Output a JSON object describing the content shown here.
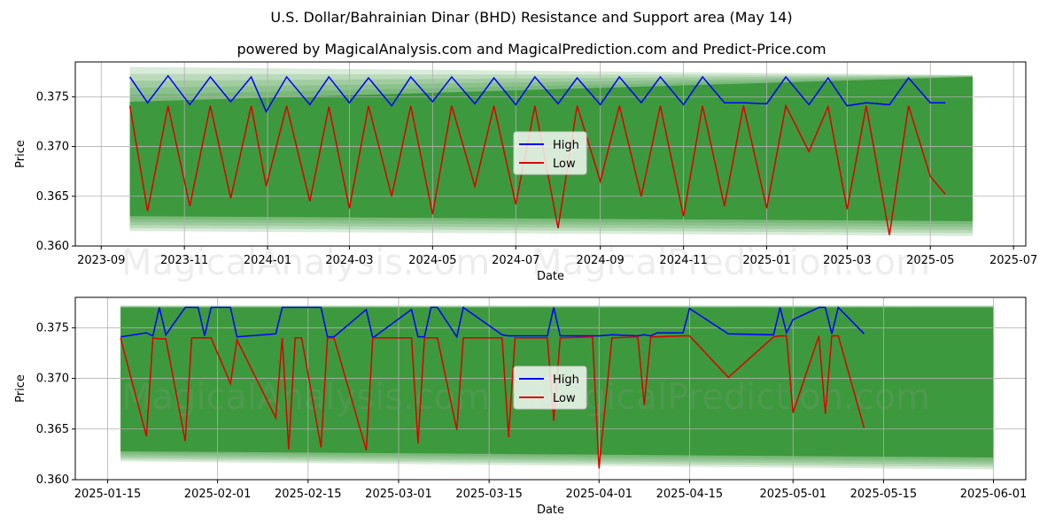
{
  "title": "U.S. Dollar/Bahrainian Dinar (BHD) Resistance and Support area (May 14)",
  "subtitle": "powered by MagicalAnalysis.com and MagicalPrediction.com and Predict-Price.com",
  "watermarks": [
    "MagicalAnalysis.com",
    "MagicalPrediction.com"
  ],
  "colors": {
    "high": "#0000ff",
    "low": "#e00000",
    "band": "#2a8f2a",
    "grid": "#b0b0b0"
  },
  "chart_data": [
    {
      "type": "line",
      "xlabel": "Date",
      "ylabel": "Price",
      "grid": true,
      "legend_position": "center",
      "xlim": [
        "2023-08-13",
        "2025-07-10"
      ],
      "ylim": [
        0.36,
        0.3785
      ],
      "x_ticks": [
        "2023-09",
        "2023-11",
        "2024-01",
        "2024-03",
        "2024-05",
        "2024-07",
        "2024-09",
        "2024-11",
        "2025-01",
        "2025-03",
        "2025-05",
        "2025-07"
      ],
      "y_ticks": [
        "0.360",
        "0.365",
        "0.370",
        "0.375"
      ],
      "band": {
        "x": [
          "2023-09-22",
          "2025-06-01"
        ],
        "upper": [
          0.378,
          0.3772
        ],
        "lower": [
          0.3615,
          0.361
        ],
        "core_upper": [
          0.3745,
          0.377
        ],
        "core_lower": [
          0.363,
          0.3625
        ]
      },
      "series": [
        {
          "name": "High",
          "x": [
            "2023-09-22",
            "2023-10-05",
            "2023-10-20",
            "2023-11-05",
            "2023-11-20",
            "2023-12-05",
            "2023-12-20",
            "2023-12-31",
            "2024-01-15",
            "2024-02-01",
            "2024-02-15",
            "2024-03-01",
            "2024-03-15",
            "2024-04-01",
            "2024-04-15",
            "2024-05-01",
            "2024-05-15",
            "2024-06-01",
            "2024-06-15",
            "2024-07-01",
            "2024-07-15",
            "2024-08-01",
            "2024-08-15",
            "2024-09-01",
            "2024-09-15",
            "2024-10-01",
            "2024-10-15",
            "2024-11-01",
            "2024-11-15",
            "2024-12-01",
            "2024-12-15",
            "2025-01-01",
            "2025-01-15",
            "2025-02-01",
            "2025-02-15",
            "2025-03-01",
            "2025-03-15",
            "2025-04-01",
            "2025-04-15",
            "2025-05-01",
            "2025-05-12"
          ],
          "values": [
            0.377,
            0.3744,
            0.3771,
            0.3742,
            0.377,
            0.3745,
            0.377,
            0.3735,
            0.377,
            0.3742,
            0.377,
            0.3744,
            0.3769,
            0.3741,
            0.377,
            0.3745,
            0.377,
            0.3743,
            0.3769,
            0.3742,
            0.377,
            0.3743,
            0.3769,
            0.3742,
            0.377,
            0.3744,
            0.377,
            0.3742,
            0.377,
            0.3744,
            0.3744,
            0.3743,
            0.377,
            0.3742,
            0.3769,
            0.3741,
            0.3744,
            0.3742,
            0.3769,
            0.3744,
            0.3744
          ]
        },
        {
          "name": "Low",
          "x": [
            "2023-09-22",
            "2023-10-05",
            "2023-10-20",
            "2023-11-05",
            "2023-11-20",
            "2023-12-05",
            "2023-12-20",
            "2023-12-31",
            "2024-01-15",
            "2024-02-01",
            "2024-02-15",
            "2024-03-01",
            "2024-03-15",
            "2024-04-01",
            "2024-04-15",
            "2024-05-01",
            "2024-05-15",
            "2024-06-01",
            "2024-06-15",
            "2024-07-01",
            "2024-07-15",
            "2024-08-01",
            "2024-08-15",
            "2024-09-01",
            "2024-09-15",
            "2024-10-01",
            "2024-10-15",
            "2024-11-01",
            "2024-11-15",
            "2024-12-01",
            "2024-12-15",
            "2025-01-01",
            "2025-01-15",
            "2025-02-01",
            "2025-02-15",
            "2025-03-01",
            "2025-03-15",
            "2025-04-01",
            "2025-04-15",
            "2025-05-01",
            "2025-05-12"
          ],
          "values": [
            0.3741,
            0.3635,
            0.3741,
            0.364,
            0.3741,
            0.3648,
            0.3741,
            0.366,
            0.3741,
            0.3645,
            0.374,
            0.3638,
            0.3741,
            0.365,
            0.3741,
            0.3632,
            0.3741,
            0.366,
            0.3741,
            0.3642,
            0.3741,
            0.3618,
            0.3741,
            0.3665,
            0.3741,
            0.365,
            0.3741,
            0.363,
            0.3741,
            0.364,
            0.3741,
            0.3638,
            0.3741,
            0.3695,
            0.374,
            0.3637,
            0.3741,
            0.3611,
            0.3741,
            0.367,
            0.3652
          ]
        }
      ]
    },
    {
      "type": "line",
      "xlabel": "Date",
      "ylabel": "Price",
      "grid": true,
      "legend_position": "center",
      "xlim": [
        "2025-01-10",
        "2025-06-06"
      ],
      "ylim": [
        0.36,
        0.378
      ],
      "x_ticks": [
        "2025-01-15",
        "2025-02-01",
        "2025-02-15",
        "2025-03-01",
        "2025-03-15",
        "2025-04-01",
        "2025-04-15",
        "2025-05-01",
        "2025-05-15",
        "2025-06-01"
      ],
      "y_ticks": [
        "0.360",
        "0.365",
        "0.370",
        "0.375"
      ],
      "band": {
        "x": [
          "2025-01-17",
          "2025-06-01"
        ],
        "upper": [
          0.3772,
          0.3772
        ],
        "lower": [
          0.3618,
          0.361
        ],
        "core_upper": [
          0.377,
          0.377
        ],
        "core_lower": [
          0.3628,
          0.3622
        ]
      },
      "series": [
        {
          "name": "High",
          "x": [
            "2025-01-17",
            "2025-01-21",
            "2025-01-22",
            "2025-01-23",
            "2025-01-24",
            "2025-01-27",
            "2025-01-28",
            "2025-01-29",
            "2025-01-30",
            "2025-01-31",
            "2025-02-03",
            "2025-02-04",
            "2025-02-10",
            "2025-02-11",
            "2025-02-12",
            "2025-02-13",
            "2025-02-14",
            "2025-02-17",
            "2025-02-18",
            "2025-02-19",
            "2025-02-24",
            "2025-02-25",
            "2025-03-03",
            "2025-03-04",
            "2025-03-05",
            "2025-03-06",
            "2025-03-07",
            "2025-03-10",
            "2025-03-11",
            "2025-03-17",
            "2025-03-18",
            "2025-03-19",
            "2025-03-24",
            "2025-03-25",
            "2025-03-26",
            "2025-03-31",
            "2025-04-01",
            "2025-04-03",
            "2025-04-07",
            "2025-04-08",
            "2025-04-09",
            "2025-04-10",
            "2025-04-14",
            "2025-04-15",
            "2025-04-21",
            "2025-04-28",
            "2025-04-29",
            "2025-04-30",
            "2025-05-01",
            "2025-05-05",
            "2025-05-06",
            "2025-05-07",
            "2025-05-08",
            "2025-05-12"
          ],
          "values": [
            0.3741,
            0.3745,
            0.3742,
            0.377,
            0.3743,
            0.377,
            0.377,
            0.377,
            0.3742,
            0.377,
            0.377,
            0.3741,
            0.3744,
            0.377,
            0.377,
            0.377,
            0.377,
            0.377,
            0.3741,
            0.3741,
            0.3768,
            0.374,
            0.3768,
            0.3741,
            0.3741,
            0.377,
            0.377,
            0.3741,
            0.377,
            0.3743,
            0.3742,
            0.3742,
            0.3742,
            0.377,
            0.3742,
            0.3742,
            0.3742,
            0.3743,
            0.3742,
            0.3743,
            0.3742,
            0.3745,
            0.3745,
            0.3769,
            0.3744,
            0.3743,
            0.377,
            0.3745,
            0.3758,
            0.377,
            0.377,
            0.3744,
            0.377,
            0.3744
          ]
        },
        {
          "name": "Low",
          "x": [
            "2025-01-17",
            "2025-01-21",
            "2025-01-22",
            "2025-01-23",
            "2025-01-24",
            "2025-01-27",
            "2025-01-28",
            "2025-01-29",
            "2025-01-30",
            "2025-01-31",
            "2025-02-03",
            "2025-02-04",
            "2025-02-10",
            "2025-02-11",
            "2025-02-12",
            "2025-02-13",
            "2025-02-14",
            "2025-02-17",
            "2025-02-18",
            "2025-02-19",
            "2025-02-24",
            "2025-02-25",
            "2025-03-03",
            "2025-03-04",
            "2025-03-05",
            "2025-03-06",
            "2025-03-07",
            "2025-03-10",
            "2025-03-11",
            "2025-03-17",
            "2025-03-18",
            "2025-03-19",
            "2025-03-24",
            "2025-03-25",
            "2025-03-26",
            "2025-03-31",
            "2025-04-01",
            "2025-04-03",
            "2025-04-07",
            "2025-04-08",
            "2025-04-09",
            "2025-04-10",
            "2025-04-14",
            "2025-04-15",
            "2025-04-21",
            "2025-04-28",
            "2025-04-29",
            "2025-04-30",
            "2025-05-01",
            "2025-05-05",
            "2025-05-06",
            "2025-05-07",
            "2025-05-08",
            "2025-05-12"
          ],
          "values": [
            0.374,
            0.3643,
            0.374,
            0.3739,
            0.3739,
            0.3638,
            0.374,
            0.374,
            0.374,
            0.374,
            0.3695,
            0.3738,
            0.3661,
            0.374,
            0.363,
            0.374,
            0.374,
            0.3632,
            0.374,
            0.374,
            0.3629,
            0.374,
            0.374,
            0.3636,
            0.374,
            0.374,
            0.374,
            0.3649,
            0.374,
            0.374,
            0.3642,
            0.374,
            0.374,
            0.3658,
            0.374,
            0.3741,
            0.3611,
            0.374,
            0.3741,
            0.3674,
            0.3741,
            0.3741,
            0.3742,
            0.3742,
            0.3701,
            0.3741,
            0.3742,
            0.3742,
            0.3666,
            0.3742,
            0.3665,
            0.3742,
            0.3742,
            0.3651
          ]
        }
      ]
    }
  ]
}
